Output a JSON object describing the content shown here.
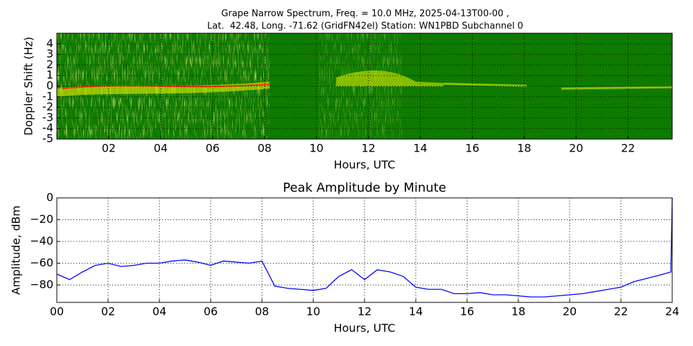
{
  "chart_data": [
    {
      "type": "spectrogram",
      "title": [
        "Grape Narrow Spectrum, Freq. = 10.0 MHz, 2025-04-13T00-00 ,",
        "Lat.  42.48, Long. -71.62 (GridFN42el) Station: WN1PBD Subchannel 0"
      ],
      "xlabel": "Hours, UTC",
      "ylabel": "Doppler Shift (Hz)",
      "xlim": [
        0,
        23.7
      ],
      "ylim": [
        -5,
        5
      ],
      "xticks": [
        {
          "value": 2,
          "label": "02"
        },
        {
          "value": 4,
          "label": "04"
        },
        {
          "value": 6,
          "label": "06"
        },
        {
          "value": 8,
          "label": "08"
        },
        {
          "value": 10,
          "label": "10"
        },
        {
          "value": 12,
          "label": "12"
        },
        {
          "value": 14,
          "label": "14"
        },
        {
          "value": 16,
          "label": "16"
        },
        {
          "value": 18,
          "label": "18"
        },
        {
          "value": 20,
          "label": "20"
        },
        {
          "value": 22,
          "label": "22"
        }
      ],
      "yticks": [
        -5,
        -4,
        -3,
        -2,
        -1,
        0,
        1,
        2,
        3,
        4
      ],
      "grid": true
    },
    {
      "type": "line",
      "title": "Peak Amplitude by Minute",
      "xlabel": "Hours, UTC",
      "ylabel": "Amplitude, dBm",
      "xlim": [
        0,
        24
      ],
      "ylim": [
        -96,
        0
      ],
      "xticks": [
        {
          "value": 0,
          "label": "00"
        },
        {
          "value": 2,
          "label": "02"
        },
        {
          "value": 4,
          "label": "04"
        },
        {
          "value": 6,
          "label": "06"
        },
        {
          "value": 8,
          "label": "08"
        },
        {
          "value": 10,
          "label": "10"
        },
        {
          "value": 12,
          "label": "12"
        },
        {
          "value": 14,
          "label": "14"
        },
        {
          "value": 16,
          "label": "16"
        },
        {
          "value": 18,
          "label": "18"
        },
        {
          "value": 20,
          "label": "20"
        },
        {
          "value": 22,
          "label": "22"
        },
        {
          "value": 24,
          "label": "24"
        }
      ],
      "yticks": [
        0,
        {
          "value": -20,
          "label": "−20"
        },
        {
          "value": -40,
          "label": "−40"
        },
        {
          "value": -60,
          "label": "−60"
        },
        {
          "value": -80,
          "label": "−80"
        }
      ],
      "grid": true,
      "color": "#0000ff",
      "x": [
        0,
        0.5,
        1,
        1.5,
        2,
        2.5,
        3,
        3.5,
        4,
        4.5,
        5,
        5.5,
        6,
        6.5,
        7,
        7.5,
        8,
        8.5,
        9,
        9.5,
        10,
        10.5,
        11,
        11.5,
        12,
        12.5,
        13,
        13.5,
        14,
        14.5,
        15,
        15.5,
        16,
        16.5,
        17,
        17.5,
        18,
        18.5,
        19,
        19.5,
        20,
        20.5,
        21,
        21.5,
        22,
        22.5,
        23,
        23.5,
        23.95,
        24
      ],
      "values": [
        -70,
        -75,
        -68,
        -62,
        -60,
        -63,
        -62,
        -60,
        -60,
        -58,
        -57,
        -59,
        -62,
        -58,
        -59,
        -60,
        -58,
        -81,
        -83,
        -84,
        -85,
        -83,
        -72,
        -66,
        -75,
        -66,
        -68,
        -72,
        -82,
        -84,
        -84,
        -88,
        -88,
        -87,
        -89,
        -89,
        -90,
        -91,
        -91,
        -90,
        -89,
        -88,
        -86,
        -84,
        -82,
        -77,
        -74,
        -71,
        -68,
        0
      ]
    }
  ]
}
